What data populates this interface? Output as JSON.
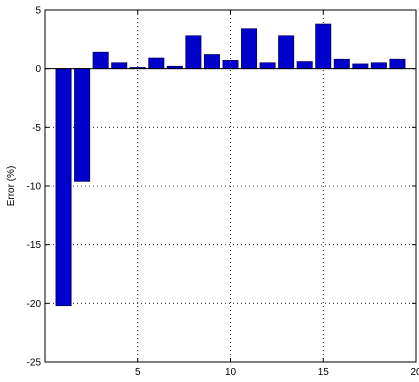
{
  "chart_data": {
    "type": "bar",
    "x": [
      1,
      2,
      3,
      4,
      5,
      6,
      7,
      8,
      9,
      10,
      11,
      12,
      13,
      14,
      15,
      16,
      17,
      18,
      19
    ],
    "values": [
      -20.2,
      -9.6,
      1.4,
      0.5,
      0.1,
      0.9,
      0.2,
      2.8,
      1.2,
      0.7,
      3.4,
      0.5,
      2.8,
      0.6,
      3.8,
      0.8,
      0.4,
      0.5,
      0.8
    ],
    "xlim": [
      0,
      20
    ],
    "ylim": [
      -25,
      5
    ],
    "xticks": [
      5,
      10,
      15,
      20
    ],
    "yticks": [
      5,
      0,
      -5,
      -10,
      -15,
      -20,
      -25
    ],
    "ylabel": "Error (%)",
    "grid": true,
    "bar_color": "#0000cc",
    "bar_edge_color": "#000066"
  }
}
